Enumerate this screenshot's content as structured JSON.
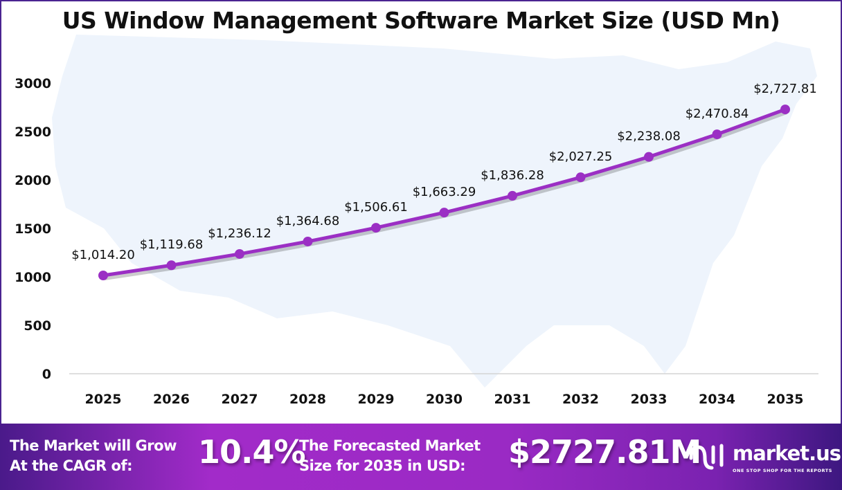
{
  "chart_data": {
    "type": "line",
    "title": "US Window Management Software Market Size (USD Mn)",
    "xlabel": "",
    "ylabel": "",
    "categories": [
      "2025",
      "2026",
      "2027",
      "2028",
      "2029",
      "2030",
      "2031",
      "2032",
      "2033",
      "2034",
      "2035"
    ],
    "values": [
      1014.2,
      1119.68,
      1236.12,
      1364.68,
      1506.61,
      1663.29,
      1836.28,
      2027.25,
      2238.08,
      2470.84,
      2727.81
    ],
    "data_labels": [
      "$1,014.20",
      "$1,119.68",
      "$1,236.12",
      "$1,364.68",
      "$1,506.61",
      "$1,663.29",
      "$1,836.28",
      "$2,027.25",
      "$2,238.08",
      "$2,470.84",
      "$2,727.81"
    ],
    "yticks": [
      "0",
      "500",
      "1000",
      "1500",
      "2000",
      "2500",
      "3000"
    ],
    "ylim": [
      0,
      3000
    ],
    "grid": false,
    "legend": "none",
    "line_color": "#9b2fc4"
  },
  "footer": {
    "cagr_text_line1": "The Market will Grow",
    "cagr_text_line2": "At the CAGR of:",
    "cagr_value": "10.4%",
    "forecast_text_line1": "The Forecasted Market",
    "forecast_text_line2": "Size for 2035 in USD:",
    "forecast_value": "$2727.81M",
    "brand_name": "market.us",
    "brand_tagline": "ONE STOP SHOP FOR THE REPORTS"
  }
}
